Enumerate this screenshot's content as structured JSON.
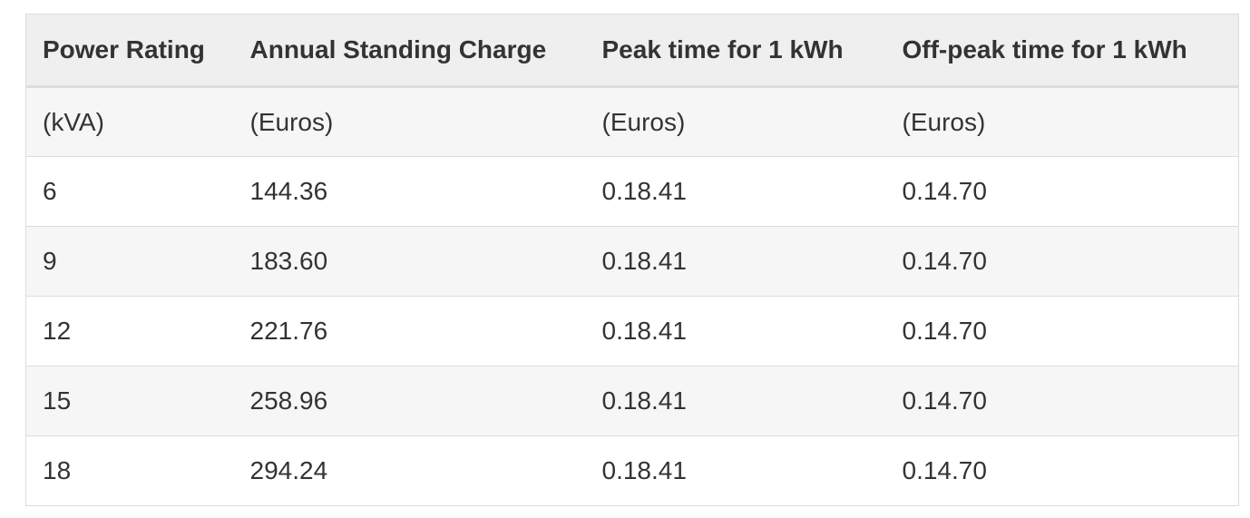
{
  "table": {
    "header": [
      "Power Rating",
      "Annual Standing Charge",
      "Peak time for 1 kWh",
      "Off-peak time for 1 kWh"
    ],
    "rows": [
      [
        "(kVA)",
        "(Euros)",
        "(Euros)",
        "(Euros)"
      ],
      [
        "6",
        "144.36",
        "0.18.41",
        "0.14.70"
      ],
      [
        "9",
        "183.60",
        "0.18.41",
        "0.14.70"
      ],
      [
        "12",
        "221.76",
        "0.18.41",
        "0.14.70"
      ],
      [
        "15",
        "258.96",
        "0.18.41",
        "0.14.70"
      ],
      [
        "18",
        "294.24",
        "0.18.41",
        "0.14.70"
      ]
    ]
  }
}
